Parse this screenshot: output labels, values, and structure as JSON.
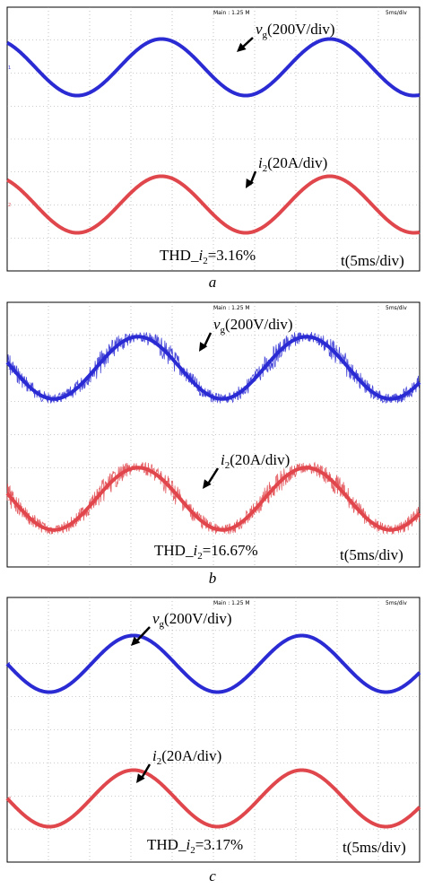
{
  "chart_data": [
    {
      "type": "line",
      "panel_label": "a",
      "header_center": "Main : 1.25 M",
      "header_right": "5ms/div",
      "time_label": "t(5ms/div)",
      "thd_prefix": "THD_",
      "thd_symbol": "i",
      "thd_sub": "2",
      "thd_value": "=3.16%",
      "x_cycles": 2.45,
      "series": [
        {
          "name_italic": "v",
          "name_sub": "g",
          "name_rest": "(200V/div)",
          "color": "#2b2bd4",
          "amplitude_div": 1.0,
          "phase_deg": 120,
          "noise_div": 0
        },
        {
          "name_italic": "i",
          "name_sub": "2",
          "name_rest": "(20A/div)",
          "color": "#e0474c",
          "amplitude_div": 1.0,
          "phase_deg": 120,
          "noise_div": 0
        }
      ]
    },
    {
      "type": "line",
      "panel_label": "b",
      "header_center": "Main : 1.25 M",
      "header_right": "5ms/div",
      "time_label": "t(5ms/div)",
      "thd_prefix": "THD_",
      "thd_symbol": "i",
      "thd_sub": "2",
      "thd_value": "=16.67%",
      "x_cycles": 2.45,
      "series": [
        {
          "name_italic": "v",
          "name_sub": "g",
          "name_rest": "(200V/div)",
          "color": "#2b2bd4",
          "amplitude_div": 1.1,
          "phase_deg": 170,
          "noise_div": 0.35
        },
        {
          "name_italic": "i",
          "name_sub": "2",
          "name_rest": "(20A/div)",
          "color": "#e0474c",
          "amplitude_div": 1.1,
          "phase_deg": 170,
          "noise_div": 0.35
        }
      ]
    },
    {
      "type": "line",
      "panel_label": "c",
      "header_center": "Main : 1.25 M",
      "header_right": "5ms/div",
      "time_label": "t(5ms/div)",
      "thd_prefix": "THD_",
      "thd_symbol": "i",
      "thd_sub": "2",
      "thd_value": "=3.17%",
      "x_cycles": 2.45,
      "series": [
        {
          "name_italic": "v",
          "name_sub": "g",
          "name_rest": "(200V/div)",
          "color": "#2b2bd4",
          "amplitude_div": 1.0,
          "phase_deg": 180,
          "noise_div": 0
        },
        {
          "name_italic": "i",
          "name_sub": "2",
          "name_rest": "(20A/div)",
          "color": "#e0474c",
          "amplitude_div": 1.0,
          "phase_deg": 180,
          "noise_div": 0
        }
      ]
    }
  ]
}
